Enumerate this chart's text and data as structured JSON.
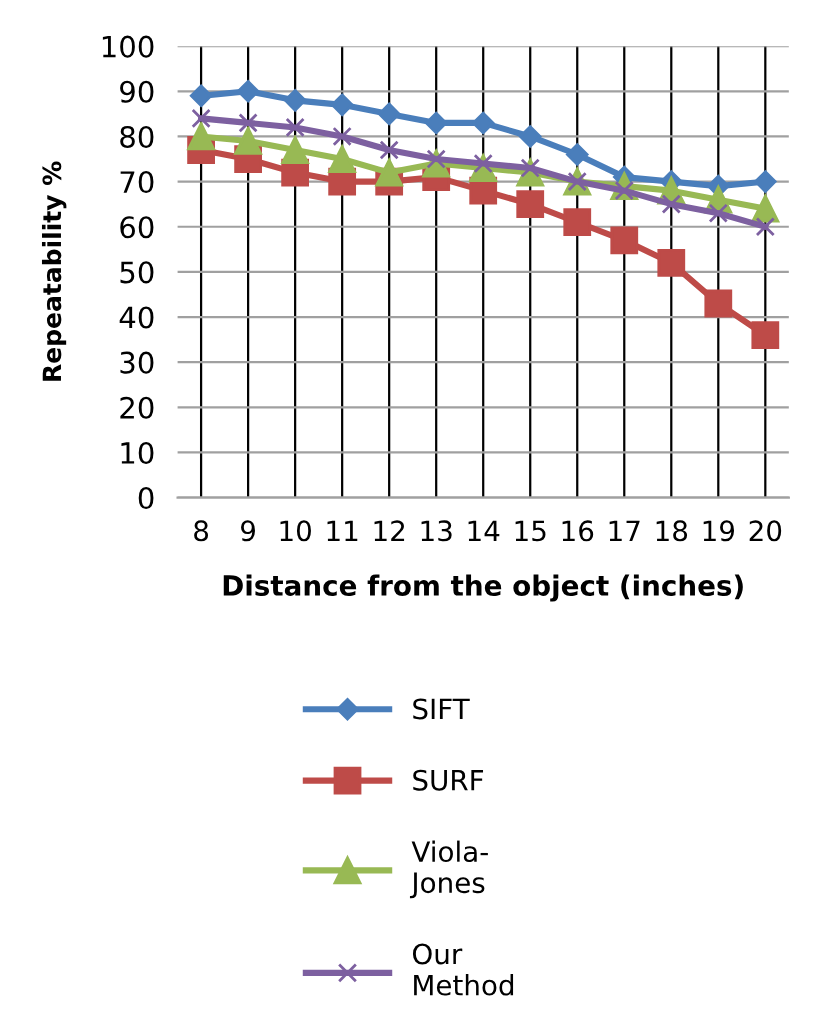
{
  "chart_data": {
    "type": "line",
    "xlabel": "Distance from the object (inches)",
    "ylabel": "Repeatability %",
    "categories": [
      "8",
      "9",
      "10",
      "11",
      "12",
      "13",
      "14",
      "15",
      "16",
      "17",
      "18",
      "19",
      "20"
    ],
    "ylim": [
      0,
      100
    ],
    "yticks": [
      0,
      10,
      20,
      30,
      40,
      50,
      60,
      70,
      80,
      90,
      100
    ],
    "grid": true,
    "legend": "bottom",
    "series": [
      {
        "name": "SIFT",
        "color": "#4a7ebb",
        "marker": "diamond",
        "values": [
          89,
          90,
          88,
          87,
          85,
          83,
          83,
          80,
          76,
          71,
          70,
          69,
          70
        ]
      },
      {
        "name": "SURF",
        "color": "#be4b48",
        "marker": "square",
        "values": [
          77,
          75,
          72,
          70,
          70,
          71,
          68,
          65,
          61,
          57,
          52,
          43,
          36
        ]
      },
      {
        "name": "Viola-Jones",
        "color": "#98b954",
        "marker": "triangle",
        "values": [
          80,
          79,
          77,
          75,
          72,
          74,
          73,
          72,
          70,
          69,
          68,
          66,
          64
        ]
      },
      {
        "name": "Our Method",
        "color": "#7d60a0",
        "marker": "cross",
        "values": [
          84,
          83,
          82,
          80,
          77,
          75,
          74,
          73,
          70,
          68,
          65,
          63,
          60
        ]
      }
    ]
  }
}
